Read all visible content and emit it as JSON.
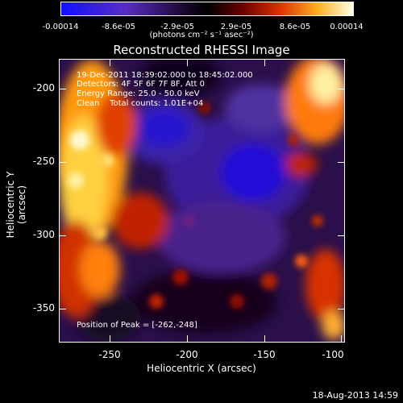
{
  "colorbar": {
    "ticks": [
      "-0.00014",
      "-8.6e-05",
      "-2.9e-05",
      "2.9e-05",
      "8.6e-05",
      "0.00014"
    ],
    "unit_label": "(photons cm⁻² s⁻¹ asec⁻²)"
  },
  "title": "Reconstructed RHESSI Image",
  "annotations": {
    "time_range": "19-Dec-2011 18:39:02.000 to 18:45:02.000",
    "detectors": "Detectors: 4F 5F 6F 7F 8F, Att 0",
    "energy": "Energy Range: 25.0 - 50.0 keV",
    "clean": "Clean    Total counts: 1.01E+04",
    "peak": "Position of Peak = [-262,-248]"
  },
  "x_axis": {
    "title": "Heliocentric X (arcsec)",
    "ticks": [
      "-250",
      "-200",
      "-150",
      "-100"
    ]
  },
  "y_axis": {
    "title": "Heliocentric Y (arcsec)",
    "ticks": [
      "-200",
      "-250",
      "-300",
      "-350"
    ]
  },
  "footer": "18-Aug-2013 14:59",
  "colors": {
    "background": "#000000",
    "foreground": "#ffffff"
  }
}
